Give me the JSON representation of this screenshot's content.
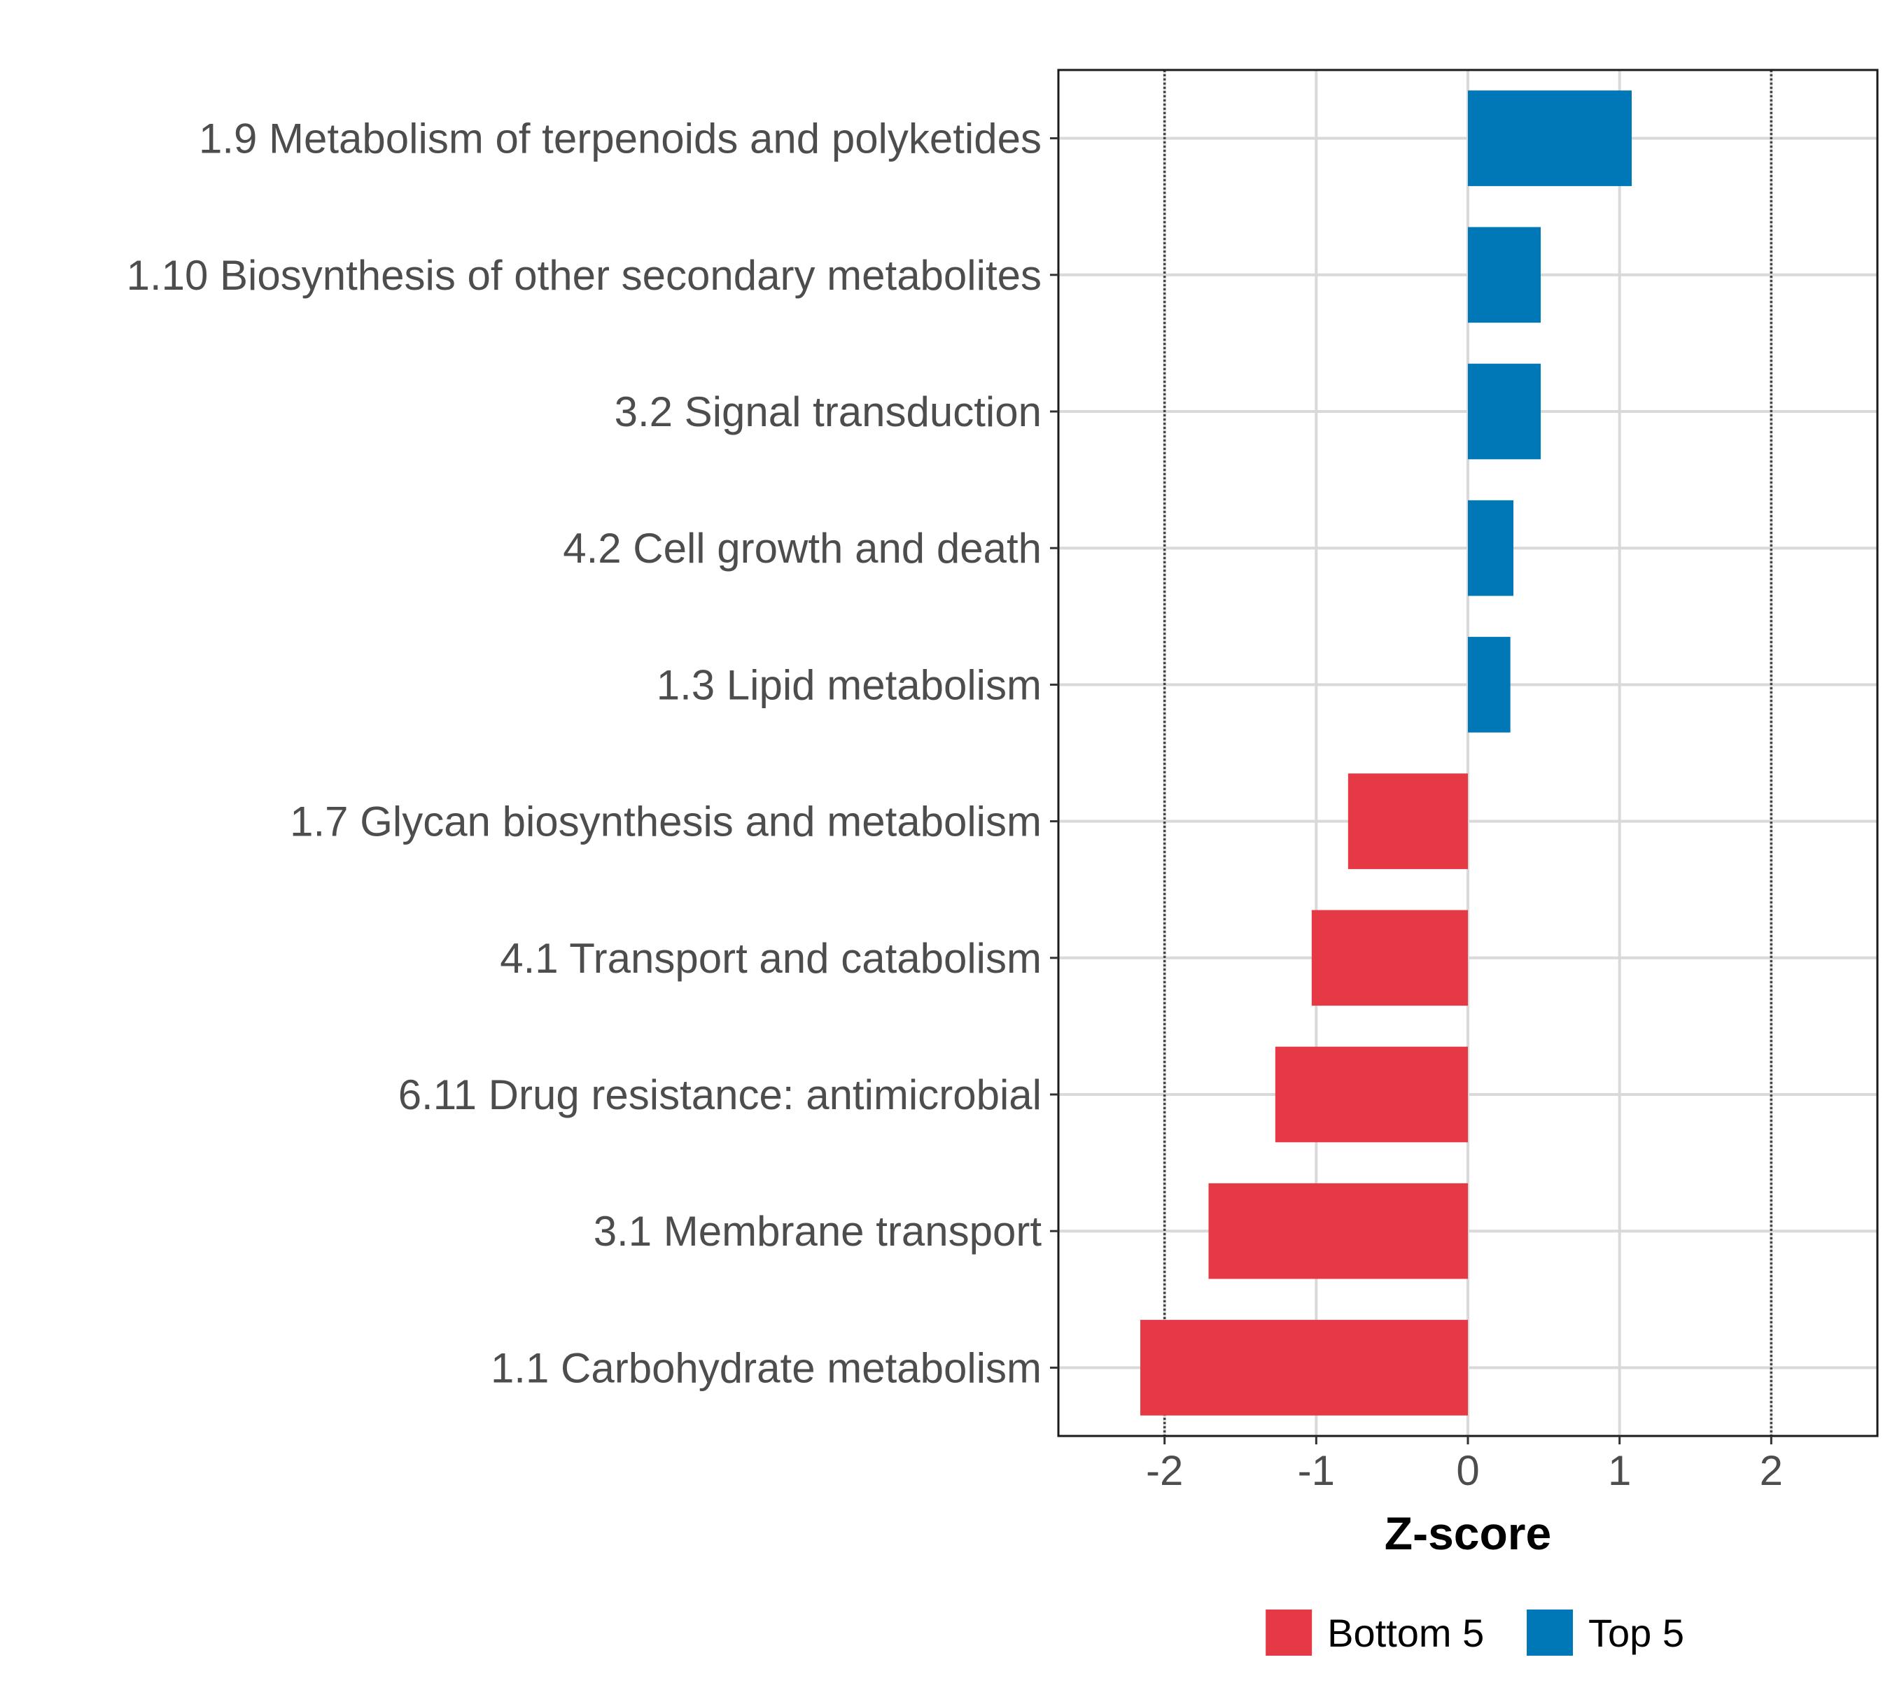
{
  "chart_data": {
    "type": "bar",
    "orientation": "horizontal",
    "title": "",
    "xlabel": "Z-score",
    "ylabel": "",
    "xlim": [
      -2.7,
      2.7
    ],
    "x_ticks": [
      -2,
      -1,
      0,
      1,
      2
    ],
    "x_tick_labels": [
      "-2",
      "-1",
      "0",
      "1",
      "2"
    ],
    "threshold_lines": [
      -2,
      2
    ],
    "grid": true,
    "categories": [
      "1.9 Metabolism of terpenoids and polyketides",
      "1.10 Biosynthesis of other secondary metabolites",
      "3.2 Signal transduction",
      "4.2 Cell growth and death",
      "1.3 Lipid metabolism",
      "1.7 Glycan biosynthesis and metabolism",
      "4.1 Transport and catabolism",
      "6.11 Drug resistance: antimicrobial",
      "3.1 Membrane transport",
      "1.1 Carbohydrate metabolism"
    ],
    "values": [
      1.08,
      0.48,
      0.48,
      0.3,
      0.28,
      -0.79,
      -1.03,
      -1.27,
      -1.71,
      -2.16
    ],
    "groups": [
      "Top 5",
      "Top 5",
      "Top 5",
      "Top 5",
      "Top 5",
      "Bottom 5",
      "Bottom 5",
      "Bottom 5",
      "Bottom 5",
      "Bottom 5"
    ],
    "legend": {
      "position": "bottom",
      "entries": [
        {
          "label": "Bottom 5",
          "color": "#E63946"
        },
        {
          "label": "Top 5",
          "color": "#0077B6"
        }
      ]
    }
  }
}
